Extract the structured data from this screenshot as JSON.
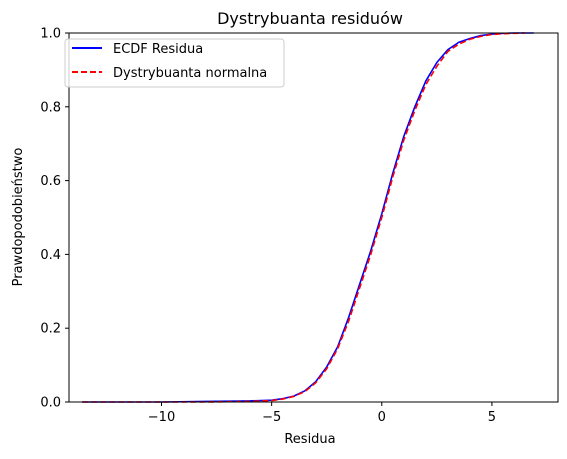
{
  "chart_data": {
    "type": "line",
    "title": "Dystrybuanta residuów",
    "xlabel": "Residua",
    "ylabel": "Prawdopodobieństwo",
    "xlim": [
      -14.2,
      8.0
    ],
    "ylim": [
      0.0,
      1.0
    ],
    "xticks": [
      -10,
      -5,
      0,
      5
    ],
    "xtick_labels": [
      "−10",
      "−5",
      "0",
      "5"
    ],
    "yticks": [
      0.0,
      0.2,
      0.4,
      0.6,
      0.8,
      1.0
    ],
    "ytick_labels": [
      "0.0",
      "0.2",
      "0.4",
      "0.6",
      "0.8",
      "1.0"
    ],
    "grid": false,
    "legend_position": "top-left",
    "series": [
      {
        "name": "ECDF Residua",
        "color": "#0000ff",
        "line_style": "solid",
        "x": [
          -13.6,
          -10.0,
          -8.0,
          -6.0,
          -5.0,
          -4.5,
          -4.0,
          -3.5,
          -3.0,
          -2.5,
          -2.0,
          -1.5,
          -1.0,
          -0.5,
          0.0,
          0.5,
          1.0,
          1.5,
          2.0,
          2.5,
          3.0,
          3.5,
          4.0,
          4.5,
          5.0,
          5.5,
          6.0,
          6.5,
          6.9
        ],
        "y": [
          0.0,
          0.0,
          0.0015,
          0.003,
          0.005,
          0.009,
          0.016,
          0.03,
          0.055,
          0.095,
          0.15,
          0.23,
          0.32,
          0.41,
          0.51,
          0.62,
          0.72,
          0.8,
          0.87,
          0.92,
          0.955,
          0.975,
          0.985,
          0.993,
          0.997,
          0.999,
          1.0,
          1.0,
          1.0
        ]
      },
      {
        "name": "Dystrybuanta normalna",
        "color": "#ff0000",
        "line_style": "dashed",
        "x": [
          -13.6,
          -10.0,
          -8.0,
          -6.0,
          -5.0,
          -4.5,
          -4.0,
          -3.5,
          -3.0,
          -2.5,
          -2.0,
          -1.5,
          -1.0,
          -0.5,
          0.0,
          0.5,
          1.0,
          1.5,
          2.0,
          2.5,
          3.0,
          3.5,
          4.0,
          4.5,
          5.0,
          5.5,
          6.0,
          6.5
        ],
        "y": [
          0.0,
          0.0,
          0.0,
          0.0015,
          0.004,
          0.008,
          0.015,
          0.028,
          0.052,
          0.09,
          0.145,
          0.22,
          0.31,
          0.4,
          0.5,
          0.61,
          0.71,
          0.79,
          0.86,
          0.91,
          0.95,
          0.97,
          0.983,
          0.991,
          0.996,
          0.998,
          0.999,
          1.0
        ]
      }
    ]
  }
}
